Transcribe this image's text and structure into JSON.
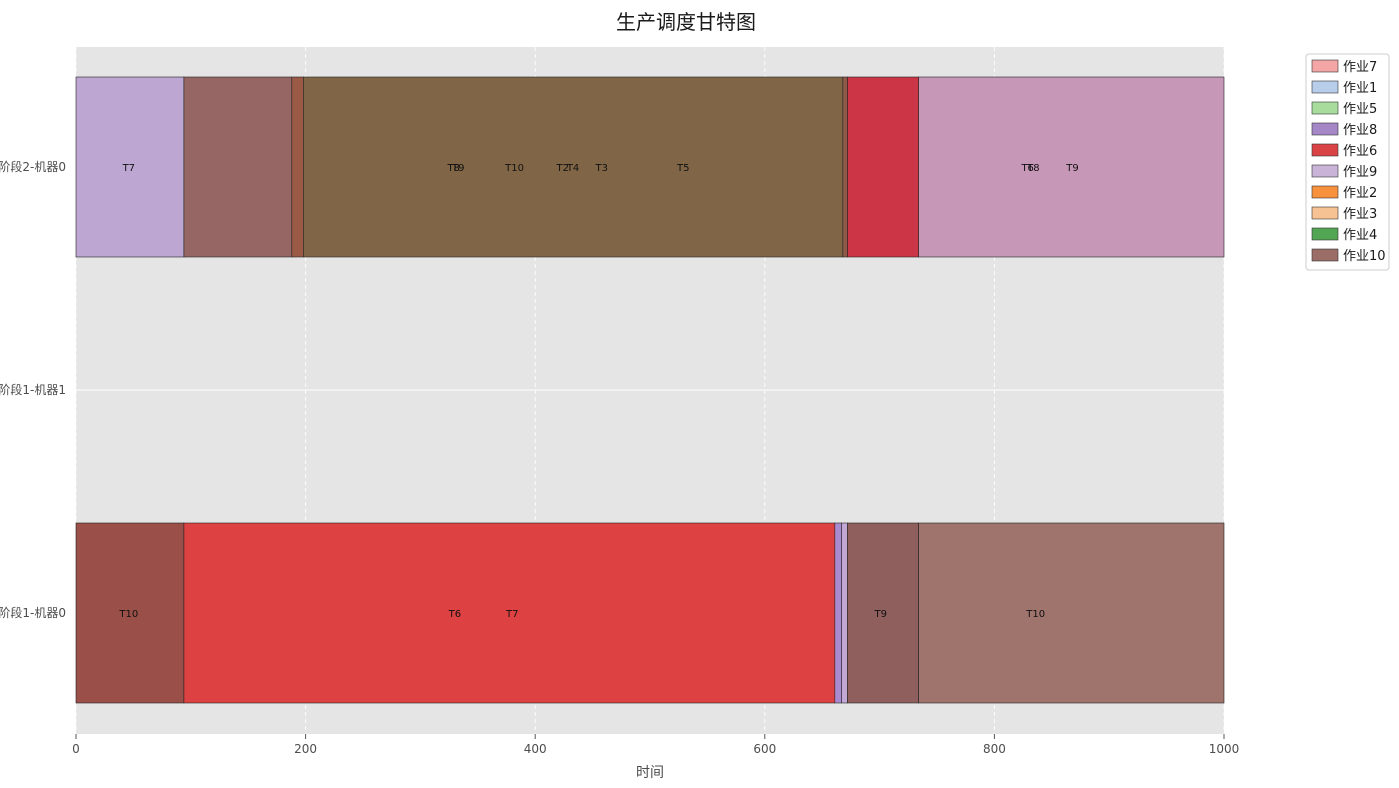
{
  "chart_data": {
    "type": "gantt",
    "title": "生产调度甘特图",
    "xlabel": "时间",
    "ylabel": "",
    "xlim": [
      0,
      1000
    ],
    "xticks": [
      0,
      200,
      400,
      600,
      800,
      1000
    ],
    "grid": true,
    "legend_position": "outside-top-right",
    "rows": [
      "阶段2-机器0",
      "阶段1-机器1",
      "阶段1-机器0"
    ],
    "legend": [
      {
        "name": "作业7",
        "color": "#f4a6a6"
      },
      {
        "name": "作业1",
        "color": "#b7cde9"
      },
      {
        "name": "作业5",
        "color": "#a8dc9c"
      },
      {
        "name": "作业8",
        "color": "#a587c8"
      },
      {
        "name": "作业6",
        "color": "#d94345"
      },
      {
        "name": "作业9",
        "color": "#c9b4d8"
      },
      {
        "name": "作业2",
        "color": "#f7913d"
      },
      {
        "name": "作业3",
        "color": "#f7c293"
      },
      {
        "name": "作业4",
        "color": "#52a552"
      },
      {
        "name": "作业10",
        "color": "#9a6d67"
      }
    ],
    "segments": [
      {
        "row": 0,
        "start": 0,
        "end": 94,
        "color": "#bda6d1"
      },
      {
        "row": 0,
        "start": 94,
        "end": 188,
        "color": "#966665"
      },
      {
        "row": 0,
        "start": 188,
        "end": 198,
        "color": "#9b5a45"
      },
      {
        "row": 0,
        "start": 198,
        "end": 668,
        "color": "#806646"
      },
      {
        "row": 0,
        "start": 668,
        "end": 672,
        "color": "#8e5a48"
      },
      {
        "row": 0,
        "start": 672,
        "end": 734,
        "color": "#cc3545"
      },
      {
        "row": 0,
        "start": 734,
        "end": 1000,
        "color": "#c697b6"
      },
      {
        "row": 2,
        "start": 0,
        "end": 94,
        "color": "#9a4f48"
      },
      {
        "row": 2,
        "start": 94,
        "end": 661,
        "color": "#de4142"
      },
      {
        "row": 2,
        "start": 661,
        "end": 667,
        "color": "#a98bcf"
      },
      {
        "row": 2,
        "start": 667,
        "end": 672,
        "color": "#c3a8d6"
      },
      {
        "row": 2,
        "start": 672,
        "end": 734,
        "color": "#8f5f5e"
      },
      {
        "row": 2,
        "start": 734,
        "end": 1000,
        "color": "#9f746d"
      }
    ],
    "bar_labels": [
      {
        "row": 0,
        "x": 46,
        "text": "T7"
      },
      {
        "row": 0,
        "x": 329,
        "text": "T8"
      },
      {
        "row": 0,
        "x": 333,
        "text": "T9"
      },
      {
        "row": 0,
        "x": 382,
        "text": "T10"
      },
      {
        "row": 0,
        "x": 424,
        "text": "T2"
      },
      {
        "row": 0,
        "x": 433,
        "text": "T4"
      },
      {
        "row": 0,
        "x": 458,
        "text": "T3"
      },
      {
        "row": 0,
        "x": 529,
        "text": "T5"
      },
      {
        "row": 0,
        "x": 829,
        "text": "T6"
      },
      {
        "row": 0,
        "x": 834,
        "text": "T8"
      },
      {
        "row": 0,
        "x": 868,
        "text": "T9"
      },
      {
        "row": 2,
        "x": 46,
        "text": "T10"
      },
      {
        "row": 2,
        "x": 330,
        "text": "T6"
      },
      {
        "row": 2,
        "x": 380,
        "text": "T7"
      },
      {
        "row": 2,
        "x": 701,
        "text": "T9"
      },
      {
        "row": 2,
        "x": 836,
        "text": "T10"
      }
    ]
  }
}
